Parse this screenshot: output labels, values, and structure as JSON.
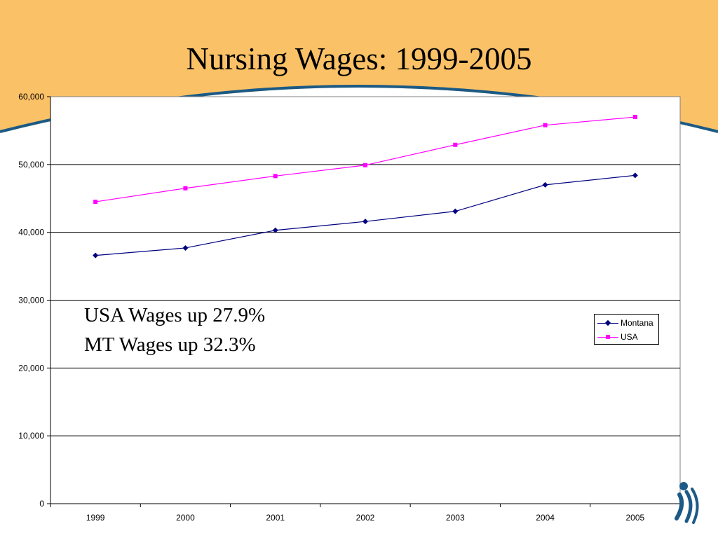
{
  "slide": {
    "title": "Nursing Wages: 1999-2005",
    "banner_color": "#FBC166",
    "arc_color": "#1B5A86"
  },
  "annotations": {
    "line1": "USA Wages up 27.9%",
    "line2": "MT Wages up 32.3%"
  },
  "chart_data": {
    "type": "line",
    "categories": [
      "1999",
      "2000",
      "2001",
      "2002",
      "2003",
      "2004",
      "2005"
    ],
    "ylim": [
      0,
      60000
    ],
    "yticks": [
      0,
      10000,
      20000,
      30000,
      40000,
      50000,
      60000
    ],
    "ytick_labels": [
      "0",
      "10,000",
      "20,000",
      "30,000",
      "40,000",
      "50,000",
      "60,000"
    ],
    "grid": "horizontal",
    "legend": "right",
    "title": "",
    "xlabel": "",
    "ylabel": "",
    "series": [
      {
        "name": "Montana",
        "values": [
          36600,
          37700,
          40300,
          41600,
          43100,
          47000,
          48400
        ],
        "color": "#000080",
        "marker": "diamond"
      },
      {
        "name": "USA",
        "values": [
          44500,
          46500,
          48300,
          49900,
          52900,
          55800,
          57000
        ],
        "color": "#FF00FF",
        "marker": "square"
      }
    ]
  },
  "logo": {
    "icon": "stylized-figure-logo",
    "color": "#1B5A86"
  }
}
